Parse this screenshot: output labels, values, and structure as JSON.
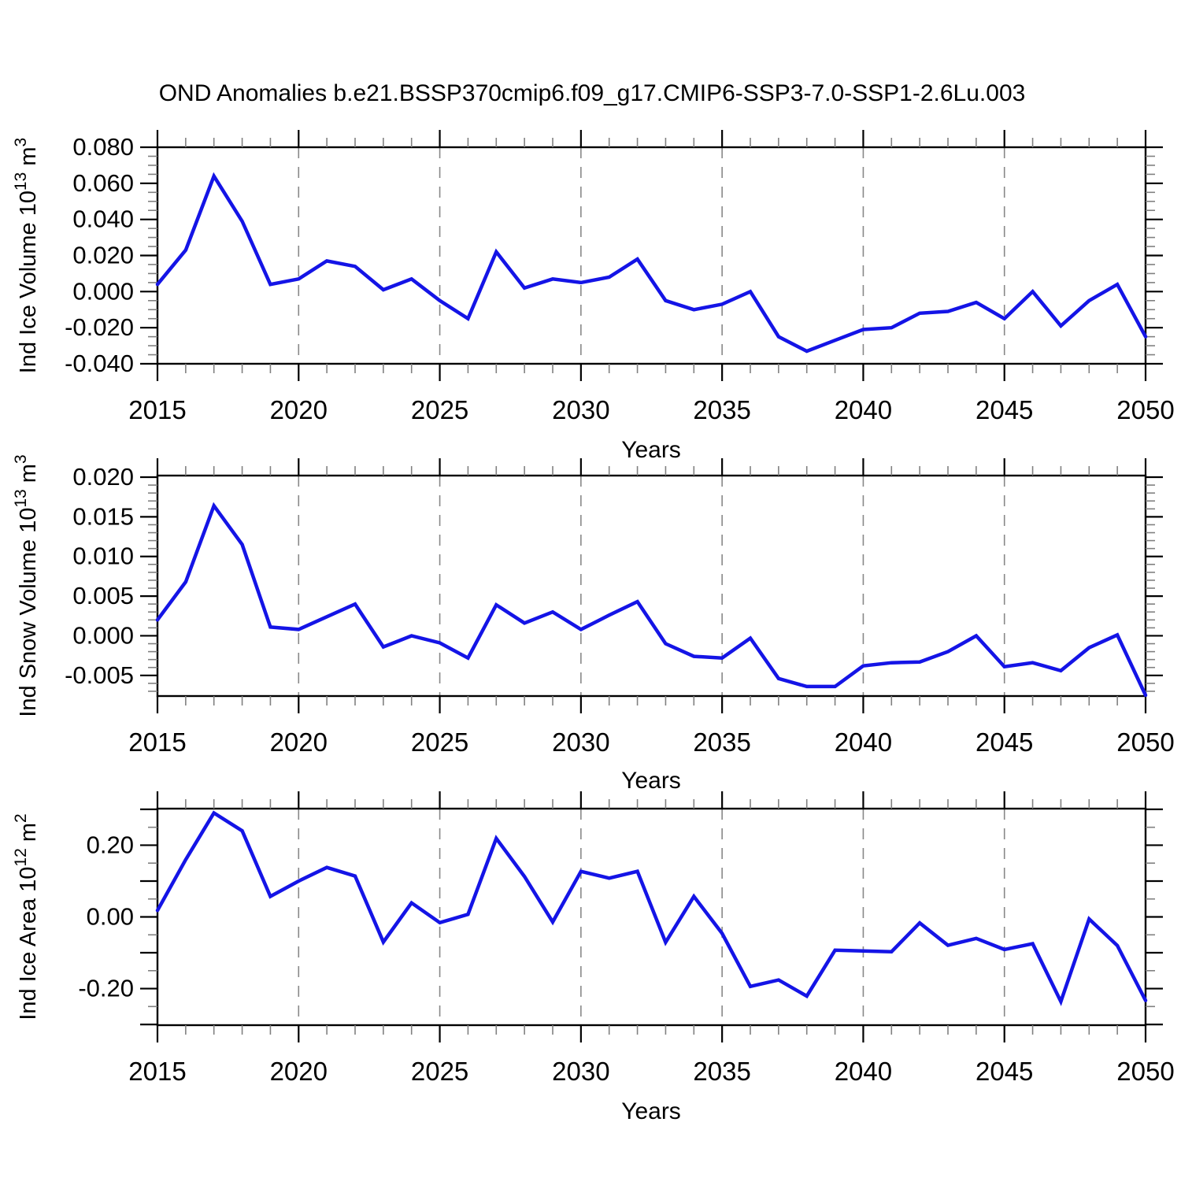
{
  "title": "OND Anomalies b.e21.BSSP370cmip6.f09_g17.CMIP6-SSP3-7.0-SSP1-2.6Lu.003",
  "colors": {
    "line": "#1414e6",
    "frame": "#000000",
    "major_tick": "#000000",
    "minor_tick": "#808080",
    "grid": "#888888",
    "background": "#ffffff"
  },
  "x_axis": {
    "label": "Years",
    "start": 2015,
    "end": 2050,
    "major_step": 5,
    "minor_step": 1,
    "tick_labels": [
      "2015",
      "2020",
      "2025",
      "2030",
      "2035",
      "2040",
      "2045",
      "2050"
    ],
    "grid_years": [
      2020,
      2025,
      2030,
      2035,
      2040,
      2045
    ]
  },
  "chart_data": [
    {
      "type": "line",
      "name": "ice-volume",
      "ylabel": "Ind Ice Volume 10^13 m^3",
      "ylabel_segments": [
        {
          "t": "Ind Ice Volume 10"
        },
        {
          "t": "13",
          "sup": true
        },
        {
          "t": " m"
        },
        {
          "t": "3",
          "sup": true
        }
      ],
      "x": [
        2015,
        2016,
        2017,
        2018,
        2019,
        2020,
        2021,
        2022,
        2023,
        2024,
        2025,
        2026,
        2027,
        2028,
        2029,
        2030,
        2031,
        2032,
        2033,
        2034,
        2035,
        2036,
        2037,
        2038,
        2039,
        2040,
        2041,
        2042,
        2043,
        2044,
        2045,
        2046,
        2047,
        2048,
        2049,
        2050
      ],
      "values": [
        0.004,
        0.023,
        0.064,
        0.039,
        0.004,
        0.007,
        0.017,
        0.014,
        0.001,
        0.007,
        -0.005,
        -0.015,
        0.022,
        0.002,
        0.007,
        0.005,
        0.008,
        0.018,
        -0.005,
        -0.01,
        -0.007,
        0.0,
        -0.025,
        -0.033,
        -0.027,
        -0.021,
        -0.02,
        -0.012,
        -0.011,
        -0.006,
        -0.015,
        0.0,
        -0.019,
        -0.005,
        0.004,
        -0.025
      ],
      "ylim": [
        -0.04,
        0.08
      ],
      "major_ticks": [
        {
          "v": 0.08,
          "label": "0.080"
        },
        {
          "v": 0.06,
          "label": "0.060"
        },
        {
          "v": 0.04,
          "label": "0.040"
        },
        {
          "v": 0.02,
          "label": "0.020"
        },
        {
          "v": 0.0,
          "label": "0.000"
        },
        {
          "v": -0.02,
          "label": "-0.020"
        },
        {
          "v": -0.04,
          "label": "-0.040"
        }
      ],
      "minor_step": 0.005
    },
    {
      "type": "line",
      "name": "snow-volume",
      "ylabel": "Ind Snow Volume 10^13 m^3",
      "ylabel_segments": [
        {
          "t": "Ind Snow Volume 10"
        },
        {
          "t": "13",
          "sup": true
        },
        {
          "t": " m"
        },
        {
          "t": "3",
          "sup": true
        }
      ],
      "x": [
        2015,
        2016,
        2017,
        2018,
        2019,
        2020,
        2021,
        2022,
        2023,
        2024,
        2025,
        2026,
        2027,
        2028,
        2029,
        2030,
        2031,
        2032,
        2033,
        2034,
        2035,
        2036,
        2037,
        2038,
        2039,
        2040,
        2041,
        2042,
        2043,
        2044,
        2045,
        2046,
        2047,
        2048,
        2049,
        2050
      ],
      "values": [
        0.002,
        0.0068,
        0.0164,
        0.0115,
        0.0011,
        0.0008,
        0.0024,
        0.004,
        -0.0014,
        0.0,
        -0.0009,
        -0.0028,
        0.0039,
        0.0016,
        0.003,
        0.0008,
        0.0026,
        0.0043,
        -0.001,
        -0.0026,
        -0.0028,
        -0.0003,
        -0.0054,
        -0.0064,
        -0.0064,
        -0.0038,
        -0.0034,
        -0.0033,
        -0.002,
        0.0,
        -0.0039,
        -0.0034,
        -0.0044,
        -0.0015,
        0.0001,
        -0.0075
      ],
      "ylim": [
        -0.0076,
        0.0202
      ],
      "major_ticks": [
        {
          "v": 0.02,
          "label": "0.020"
        },
        {
          "v": 0.015,
          "label": "0.015"
        },
        {
          "v": 0.01,
          "label": "0.010"
        },
        {
          "v": 0.005,
          "label": "0.005"
        },
        {
          "v": 0.0,
          "label": "0.000"
        },
        {
          "v": -0.005,
          "label": "-0.005"
        }
      ],
      "minor_step": 0.001
    },
    {
      "type": "line",
      "name": "ice-area",
      "ylabel": "Ind Ice Area 10^12 m^2",
      "ylabel_segments": [
        {
          "t": "Ind Ice Area 10"
        },
        {
          "t": "12",
          "sup": true
        },
        {
          "t": " m"
        },
        {
          "t": "2",
          "sup": true
        }
      ],
      "x": [
        2015,
        2016,
        2017,
        2018,
        2019,
        2020,
        2021,
        2022,
        2023,
        2024,
        2025,
        2026,
        2027,
        2028,
        2029,
        2030,
        2031,
        2032,
        2033,
        2034,
        2035,
        2036,
        2037,
        2038,
        2039,
        2040,
        2041,
        2042,
        2043,
        2044,
        2045,
        2046,
        2047,
        2048,
        2049,
        2050
      ],
      "values": [
        0.018,
        0.16,
        0.29,
        0.24,
        0.057,
        0.1,
        0.138,
        0.114,
        -0.07,
        0.039,
        -0.016,
        0.007,
        0.219,
        0.113,
        -0.014,
        0.127,
        0.108,
        0.127,
        -0.071,
        0.057,
        -0.046,
        -0.194,
        -0.176,
        -0.221,
        -0.093,
        -0.095,
        -0.097,
        -0.017,
        -0.079,
        -0.06,
        -0.091,
        -0.075,
        -0.236,
        -0.006,
        -0.08,
        -0.233
      ],
      "ylim": [
        -0.302,
        0.302
      ],
      "major_ticks": [
        {
          "v": 0.3,
          "label": null
        },
        {
          "v": 0.2,
          "label": "0.20"
        },
        {
          "v": 0.1,
          "label": null
        },
        {
          "v": 0.0,
          "label": "0.00"
        },
        {
          "v": -0.1,
          "label": null
        },
        {
          "v": -0.2,
          "label": "-0.20"
        },
        {
          "v": -0.3,
          "label": null
        }
      ],
      "minor_step": 0.05
    }
  ]
}
